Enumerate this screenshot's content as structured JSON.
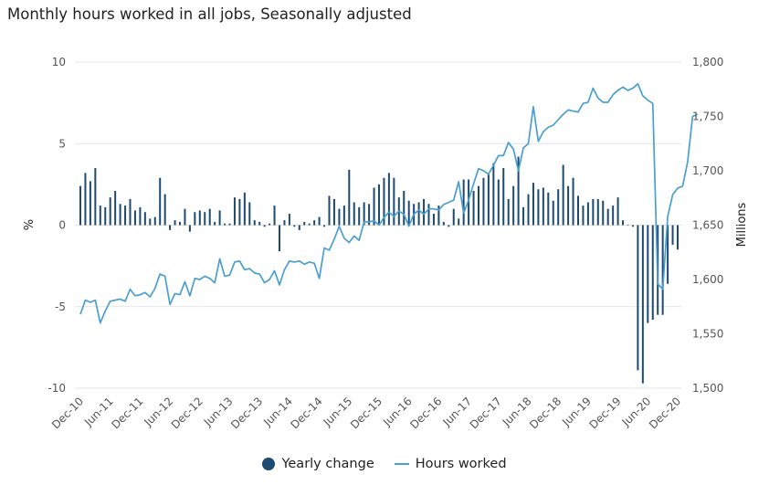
{
  "chart_data": {
    "type": "bar+line",
    "title": "Monthly hours worked in all jobs, Seasonally adjusted",
    "start_month": "Dec-10",
    "x_tick_labels": [
      "Dec-10",
      "Jun-11",
      "Dec-11",
      "Jun-12",
      "Dec-12",
      "Jun-13",
      "Dec-13",
      "Jun-14",
      "Dec-14",
      "Jun-15",
      "Dec-15",
      "Jun-16",
      "Dec-16",
      "Jun-17",
      "Dec-17",
      "Jun-18",
      "Dec-18",
      "Jun-19",
      "Dec-19",
      "Jun-20",
      "Dec-20"
    ],
    "left_axis": {
      "label": "%",
      "range": [
        -10,
        10
      ],
      "ticks": [
        "10",
        "5",
        "0",
        "-5",
        "-10"
      ]
    },
    "right_axis": {
      "label": "Millions",
      "range": [
        1500,
        1800
      ],
      "ticks": [
        "1,800",
        "1,750",
        "1,700",
        "1,650",
        "1,600",
        "1,550",
        "1,500"
      ]
    },
    "grid": true,
    "legend_position": "bottom",
    "series": [
      {
        "name": "Yearly change",
        "type": "bar",
        "axis": "left",
        "color": "#1c4a72",
        "values": [
          2.4,
          3.2,
          2.7,
          3.5,
          1.2,
          1.1,
          1.7,
          2.1,
          1.3,
          1.2,
          1.6,
          0.9,
          1.1,
          0.8,
          0.4,
          0.5,
          2.9,
          1.9,
          -0.3,
          0.3,
          0.2,
          1.0,
          -0.4,
          0.8,
          0.9,
          0.8,
          1.0,
          0.2,
          0.9,
          0.1,
          0.1,
          1.7,
          1.6,
          2.0,
          1.4,
          0.3,
          0.2,
          -0.1,
          0.1,
          1.2,
          -1.6,
          0.3,
          0.7,
          -0.1,
          -0.3,
          0.2,
          0.1,
          0.3,
          0.5,
          -0.1,
          1.8,
          1.6,
          1.0,
          1.2,
          3.4,
          1.4,
          1.1,
          1.4,
          1.3,
          2.3,
          2.5,
          2.9,
          3.2,
          2.9,
          1.7,
          2.1,
          1.5,
          1.3,
          1.4,
          1.6,
          1.3,
          0.7,
          1.2,
          0.2,
          -0.1,
          1.0,
          0.4,
          2.8,
          2.8,
          2.1,
          2.4,
          2.9,
          3.1,
          3.8,
          2.8,
          3.5,
          1.6,
          2.4,
          4.2,
          1.1,
          1.9,
          2.6,
          2.2,
          2.3,
          2.0,
          1.5,
          2.2,
          3.7,
          2.4,
          2.9,
          1.8,
          1.2,
          1.4,
          1.6,
          1.6,
          1.5,
          1.0,
          1.2,
          1.7,
          0.3,
          0.0,
          -0.1,
          -8.9,
          -9.7,
          -6.0,
          -5.8,
          -5.5,
          -5.5,
          -3.6,
          -1.2,
          -1.5
        ]
      },
      {
        "name": "Hours worked",
        "type": "line",
        "axis": "right",
        "color": "#4a9fd0",
        "values": [
          1568,
          1581,
          1579,
          1581,
          1560,
          1571,
          1580,
          1581,
          1582,
          1580,
          1591,
          1585,
          1586,
          1588,
          1584,
          1592,
          1605,
          1603,
          1577,
          1587,
          1586,
          1598,
          1585,
          1601,
          1600,
          1603,
          1601,
          1597,
          1619,
          1603,
          1604,
          1616,
          1617,
          1609,
          1610,
          1606,
          1605,
          1597,
          1600,
          1608,
          1595,
          1609,
          1617,
          1616,
          1617,
          1614,
          1616,
          1615,
          1601,
          1629,
          1627,
          1637,
          1649,
          1638,
          1634,
          1640,
          1636,
          1653,
          1653,
          1654,
          1650,
          1657,
          1662,
          1658,
          1663,
          1660,
          1649,
          1660,
          1664,
          1660,
          1665,
          1665,
          1664,
          1669,
          1671,
          1673,
          1690,
          1661,
          1673,
          1688,
          1702,
          1700,
          1697,
          1705,
          1714,
          1714,
          1726,
          1720,
          1700,
          1721,
          1725,
          1759,
          1727,
          1736,
          1740,
          1742,
          1747,
          1752,
          1756,
          1755,
          1754,
          1762,
          1763,
          1776,
          1767,
          1763,
          1763,
          1770,
          1774,
          1777,
          1774,
          1776,
          1780,
          1769,
          1765,
          1762,
          1596,
          1591,
          1658,
          1678,
          1684,
          1686,
          1708,
          1750,
          1752
        ]
      }
    ]
  },
  "legend": {
    "items": [
      {
        "label": "Yearly change"
      },
      {
        "label": "Hours worked"
      }
    ]
  }
}
